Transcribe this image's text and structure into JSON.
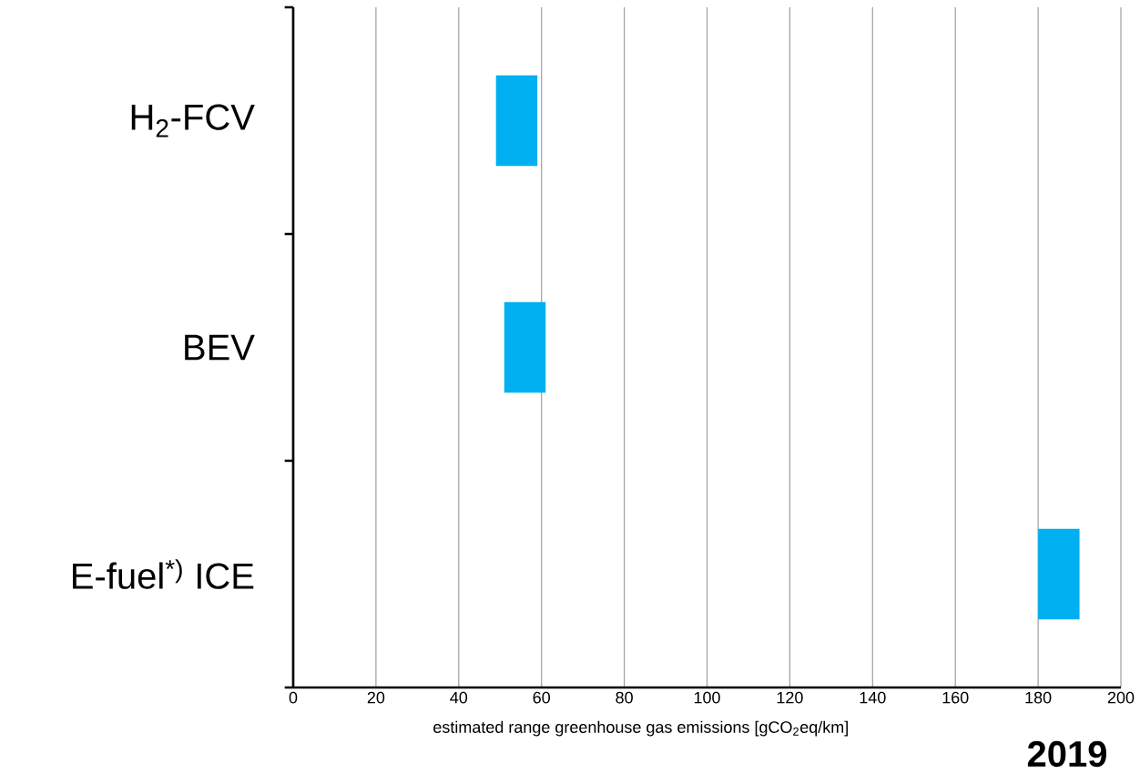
{
  "chart_data": {
    "type": "bar",
    "orientation": "horizontal",
    "categories": [
      "H$_{2}$-FCV",
      "BEV",
      "E-fuel$^{*)}$ ICE"
    ],
    "base": [
      49,
      51,
      180
    ],
    "values": [
      10,
      10,
      10
    ],
    "color": "#00b0f0",
    "xlim": [
      0,
      200
    ],
    "xticks": [
      0,
      20,
      40,
      60,
      80,
      100,
      120,
      140,
      160,
      180,
      200
    ],
    "xlabel": "estimated range greenhouse gas emissions [gCO$_{2}$eq/km]",
    "annotations": [
      "2019"
    ],
    "grid": "x"
  }
}
